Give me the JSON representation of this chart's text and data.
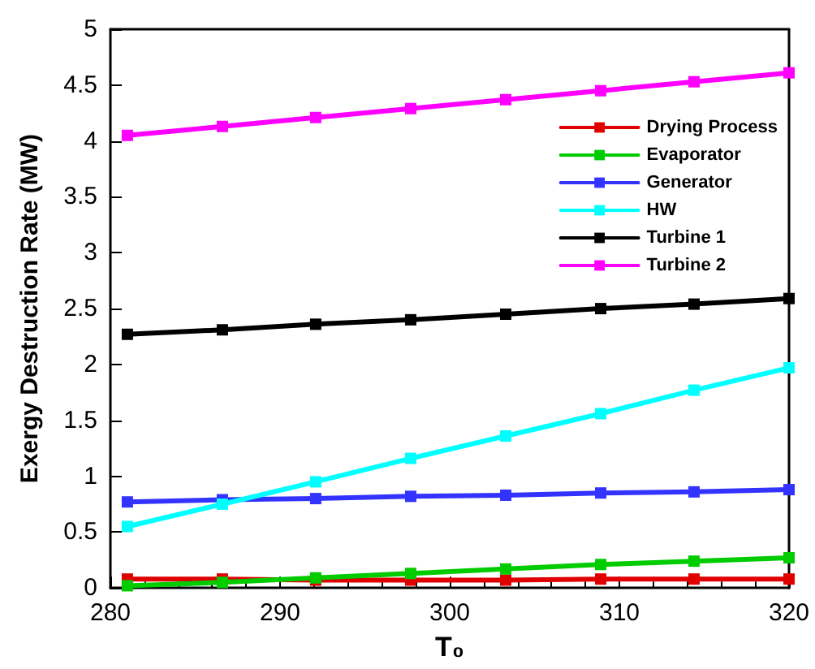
{
  "chart_data": {
    "type": "line",
    "xlabel": "T₀",
    "ylabel": "Exergy Destruction Rate (MW)",
    "x": [
      281,
      286.6,
      292.1,
      297.7,
      303.3,
      308.9,
      314.4,
      320
    ],
    "series": [
      {
        "name": "Drying Process",
        "color": "#e00000",
        "values": [
          0.08,
          0.08,
          0.07,
          0.07,
          0.07,
          0.08,
          0.08,
          0.08
        ]
      },
      {
        "name": "Evaporator",
        "color": "#00cc00",
        "values": [
          0.02,
          0.05,
          0.09,
          0.13,
          0.17,
          0.21,
          0.24,
          0.27
        ]
      },
      {
        "name": "Generator",
        "color": "#3333ff",
        "values": [
          0.77,
          0.79,
          0.8,
          0.82,
          0.83,
          0.85,
          0.86,
          0.88
        ]
      },
      {
        "name": "HW",
        "color": "#00ffff",
        "values": [
          0.55,
          0.75,
          0.95,
          1.16,
          1.36,
          1.56,
          1.77,
          1.97
        ]
      },
      {
        "name": "Turbine 1",
        "color": "#000000",
        "values": [
          2.27,
          2.31,
          2.36,
          2.4,
          2.45,
          2.5,
          2.54,
          2.59
        ]
      },
      {
        "name": "Turbine 2",
        "color": "#ff00ff",
        "values": [
          4.05,
          4.13,
          4.21,
          4.29,
          4.37,
          4.45,
          4.53,
          4.61
        ]
      }
    ],
    "xlim": [
      280,
      320
    ],
    "xticks": [
      280,
      290,
      300,
      310,
      320
    ],
    "ylim": [
      0,
      5
    ],
    "yticks": [
      0,
      0.5,
      1,
      1.5,
      2,
      2.5,
      3,
      3.5,
      4,
      4.5,
      5
    ],
    "grid": false,
    "legend": "right",
    "marker": "square",
    "line_style": "solid"
  }
}
